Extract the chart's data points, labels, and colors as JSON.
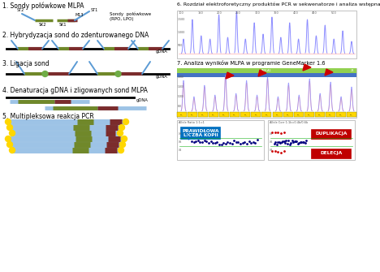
{
  "background": "#ffffff",
  "left_steps": [
    "1. Sondy połówkowe MLPA",
    "2. Hybrydyzacja sond do zdenturowanego DNA",
    "3. Ligacja sond",
    "4. Denaturacja gDNA i zligowanych sond MLPA",
    "5. Multipleksowa reakcja PCR"
  ],
  "right_steps": [
    "6. Rozdział elektroforetyczny produktów PCR w sekwenatorze i analiza wstępna",
    "7. Analiza wyników MLPA w programie GeneMarker 1.6"
  ],
  "colors": {
    "blue": "#5B9BD5",
    "dark_blue": "#2E75B6",
    "red_brown": "#7B2C2C",
    "dark_red": "#C00000",
    "olive": "#70882A",
    "green_dot": "#70AD47",
    "yellow": "#FFD700",
    "light_blue": "#9DC3E6",
    "gray": "#808080",
    "black": "#000000",
    "white": "#ffffff",
    "blue_label": "#0070C0",
    "peak_blue": "#8080FF",
    "peak_red": "#FF8080",
    "green_bar": "#92D050",
    "blue_bar": "#4472C4"
  }
}
